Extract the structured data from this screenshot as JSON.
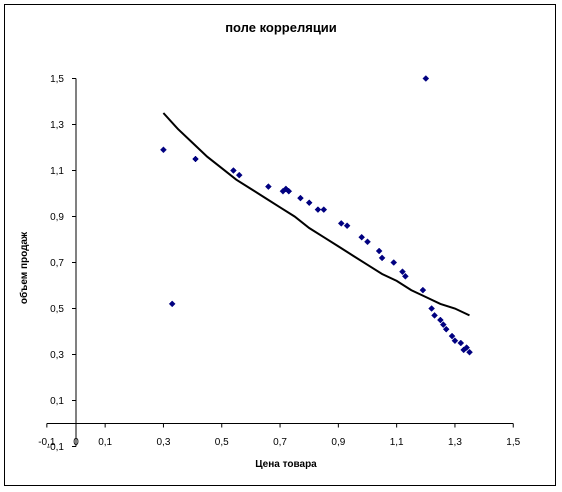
{
  "chart_data": {
    "type": "scatter",
    "title": "поле корреляции",
    "xlabel": "Цена товара",
    "ylabel": "объем продаж",
    "xlim": [
      -0.1,
      1.5
    ],
    "ylim": [
      -0.1,
      1.5
    ],
    "x_ticks": [
      "-0,1",
      "0",
      "0,1",
      "0,3",
      "0,5",
      "0,7",
      "0,9",
      "1,1",
      "1,3",
      "1,5"
    ],
    "x_tick_values": [
      -0.1,
      0,
      0.1,
      0.3,
      0.5,
      0.7,
      0.9,
      1.1,
      1.3,
      1.5
    ],
    "y_ticks": [
      "-0,1",
      "0,1",
      "0,3",
      "0,5",
      "0,7",
      "0,9",
      "1,1",
      "1,3",
      "1,5"
    ],
    "y_tick_values": [
      -0.1,
      0.1,
      0.3,
      0.5,
      0.7,
      0.9,
      1.1,
      1.3,
      1.5
    ],
    "grid": false,
    "legend": "none",
    "marker_color": "#000080",
    "line_color": "#000000",
    "series": [
      {
        "kind": "points",
        "x": [
          0.3,
          0.33,
          0.41,
          0.54,
          0.56,
          0.66,
          0.71,
          0.72,
          0.73,
          0.77,
          0.8,
          0.83,
          0.85,
          0.91,
          0.93,
          0.98,
          1.0,
          1.04,
          1.05,
          1.09,
          1.12,
          1.13,
          1.19,
          1.2,
          1.22,
          1.23,
          1.25,
          1.26,
          1.27,
          1.29,
          1.3,
          1.32,
          1.33,
          1.34,
          1.35
        ],
        "y": [
          1.19,
          0.52,
          1.15,
          1.1,
          1.08,
          1.03,
          1.01,
          1.02,
          1.01,
          0.98,
          0.96,
          0.93,
          0.93,
          0.87,
          0.86,
          0.81,
          0.79,
          0.75,
          0.72,
          0.7,
          0.66,
          0.64,
          0.58,
          1.5,
          0.5,
          0.47,
          0.45,
          0.43,
          0.41,
          0.38,
          0.36,
          0.35,
          0.32,
          0.33,
          0.31
        ]
      },
      {
        "kind": "trend",
        "x": [
          0.3,
          0.35,
          0.4,
          0.45,
          0.5,
          0.55,
          0.6,
          0.65,
          0.7,
          0.75,
          0.8,
          0.85,
          0.9,
          0.95,
          1.0,
          1.05,
          1.1,
          1.15,
          1.2,
          1.25,
          1.3,
          1.35
        ],
        "y": [
          1.35,
          1.28,
          1.22,
          1.16,
          1.11,
          1.06,
          1.02,
          0.98,
          0.94,
          0.9,
          0.85,
          0.81,
          0.77,
          0.73,
          0.69,
          0.65,
          0.62,
          0.58,
          0.55,
          0.52,
          0.5,
          0.47
        ]
      }
    ]
  }
}
